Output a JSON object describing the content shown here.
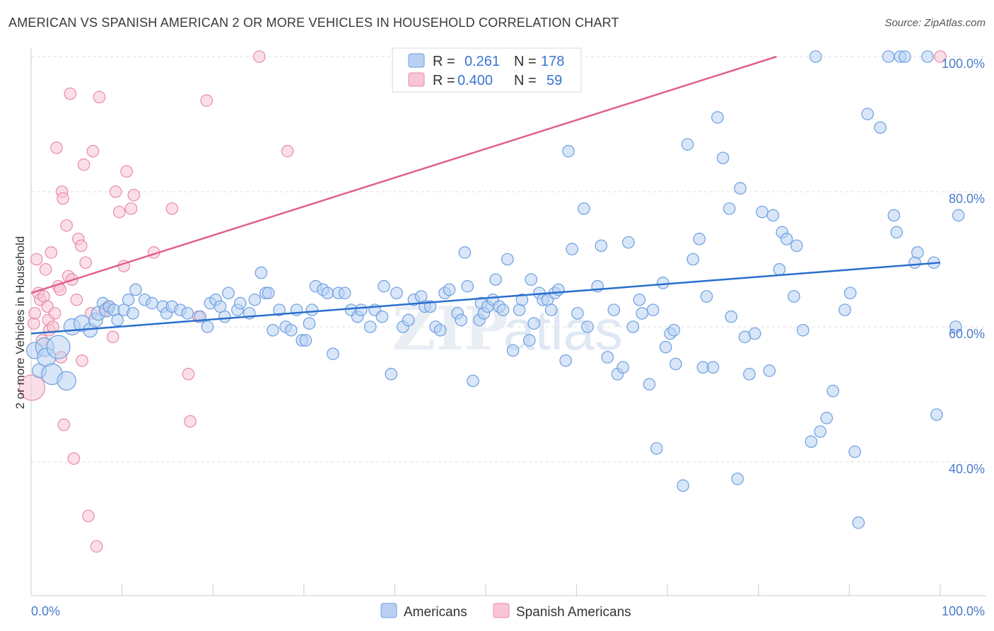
{
  "title": "AMERICAN VS SPANISH AMERICAN 2 OR MORE VEHICLES IN HOUSEHOLD CORRELATION CHART",
  "source": "Source: ZipAtlas.com",
  "watermark": {
    "left": "ZIP",
    "right": "atlas"
  },
  "colors": {
    "blue_fill": "#b8d1f3",
    "blue_stroke": "#6c9ee0",
    "blue_line": "#2a6fcc",
    "pink_fill": "#f8c5d4",
    "pink_stroke": "#e88aa8",
    "pink_line": "#e06090",
    "tick": "#4a7cc9",
    "grid": "#dddddd"
  },
  "legend": {
    "rows": [
      {
        "r_label": "R =",
        "r_value": "0.261",
        "n_label": "N =",
        "n_value": "178"
      },
      {
        "r_label": "R =",
        "r_value": "0.400",
        "n_label": "N =",
        "n_value": "59"
      }
    ]
  },
  "bottom_legend": [
    "Americans",
    "Spanish Americans"
  ],
  "chart_data": {
    "type": "scatter",
    "title": "AMERICAN VS SPANISH AMERICAN 2 OR MORE VEHICLES IN HOUSEHOLD CORRELATION CHART",
    "xlabel": "",
    "ylabel": "2 or more Vehicles in Household",
    "xlim": [
      0,
      100
    ],
    "ylim": [
      21,
      102
    ],
    "x_ticks": [
      "0.0%",
      "100.0%"
    ],
    "y_ticks": [
      {
        "value": 40,
        "label": "40.0%"
      },
      {
        "value": 60,
        "label": "60.0%"
      },
      {
        "value": 80,
        "label": "80.0%"
      },
      {
        "value": 100,
        "label": "100.0%"
      }
    ],
    "grid": true,
    "legend_position": "top-center",
    "series": [
      {
        "name": "Americans",
        "trend": {
          "x0": 0,
          "y0": 59.0,
          "x1": 100,
          "y1": 69.5
        },
        "points": [
          [
            0.4,
            56.5,
            14
          ],
          [
            0.9,
            53.5,
            12
          ],
          [
            1.5,
            57,
            16
          ],
          [
            1.7,
            55.5,
            16
          ],
          [
            2.3,
            53,
            18
          ],
          [
            3,
            57,
            20
          ],
          [
            3.9,
            52,
            16
          ],
          [
            4.5,
            60,
            14
          ],
          [
            5.6,
            60.5,
            14
          ],
          [
            6.5,
            59.5,
            12
          ],
          [
            7.1,
            61,
            12
          ],
          [
            7.4,
            62,
            12
          ],
          [
            7.9,
            63.5,
            10
          ],
          [
            8.3,
            62.5,
            12
          ],
          [
            8.6,
            63,
            10
          ],
          [
            9.1,
            62.5,
            10
          ],
          [
            9.5,
            61,
            10
          ],
          [
            10.2,
            62.5,
            10
          ],
          [
            10.7,
            64,
            10
          ],
          [
            11.2,
            62,
            10
          ],
          [
            11.5,
            65.5,
            10
          ],
          [
            12.5,
            64,
            10
          ],
          [
            13.3,
            63.5,
            10
          ],
          [
            14.5,
            63,
            10
          ],
          [
            14.9,
            62,
            10
          ],
          [
            15.5,
            63,
            10
          ],
          [
            16.4,
            62.5,
            10
          ],
          [
            17.2,
            62,
            10
          ],
          [
            18.6,
            61.5,
            10
          ],
          [
            19.4,
            60,
            10
          ],
          [
            19.7,
            63.5,
            10
          ],
          [
            20.3,
            64,
            10
          ],
          [
            20.8,
            63,
            10
          ],
          [
            21.3,
            61.5,
            10
          ],
          [
            21.7,
            65,
            10
          ],
          [
            22.7,
            62.5,
            10
          ],
          [
            23,
            63.5,
            10
          ],
          [
            24,
            62,
            10
          ],
          [
            24.6,
            64,
            10
          ],
          [
            25.3,
            68,
            10
          ],
          [
            25.8,
            65,
            10
          ],
          [
            26.1,
            65,
            10
          ],
          [
            26.6,
            59.5,
            10
          ],
          [
            27.3,
            62.5,
            10
          ],
          [
            28,
            60,
            10
          ],
          [
            28.6,
            59.5,
            10
          ],
          [
            29.2,
            62.5,
            10
          ],
          [
            29.8,
            58,
            10
          ],
          [
            30.2,
            58,
            10
          ],
          [
            30.6,
            60.5,
            10
          ],
          [
            30.9,
            62.5,
            10
          ],
          [
            31.3,
            66,
            10
          ],
          [
            32.1,
            65.5,
            10
          ],
          [
            32.6,
            65,
            10
          ],
          [
            33.2,
            56,
            10
          ],
          [
            33.8,
            65,
            10
          ],
          [
            34.5,
            65,
            10
          ],
          [
            35.2,
            62.5,
            10
          ],
          [
            35.9,
            61.5,
            10
          ],
          [
            36.3,
            62.5,
            10
          ],
          [
            37.3,
            60,
            10
          ],
          [
            37.8,
            62.5,
            10
          ],
          [
            38.6,
            61.5,
            10
          ],
          [
            38.8,
            66,
            10
          ],
          [
            39.6,
            53,
            10
          ],
          [
            40.2,
            65,
            10
          ],
          [
            40.9,
            60,
            10
          ],
          [
            41.5,
            61,
            10
          ],
          [
            42.1,
            64,
            10
          ],
          [
            42.9,
            64.5,
            10
          ],
          [
            43.3,
            63,
            10
          ],
          [
            43.9,
            63,
            10
          ],
          [
            44.5,
            60,
            10
          ],
          [
            45,
            59.5,
            10
          ],
          [
            45.5,
            65,
            10
          ],
          [
            46,
            65.5,
            10
          ],
          [
            46.9,
            62,
            10
          ],
          [
            47.3,
            61,
            10
          ],
          [
            47.7,
            71,
            10
          ],
          [
            48,
            66,
            10
          ],
          [
            48.6,
            52,
            10
          ],
          [
            49.3,
            61,
            10
          ],
          [
            49.5,
            63.5,
            10
          ],
          [
            49.8,
            62,
            10
          ],
          [
            50.2,
            63,
            10
          ],
          [
            50.8,
            64,
            10
          ],
          [
            51.1,
            67,
            10
          ],
          [
            51.5,
            63,
            10
          ],
          [
            51.9,
            62.5,
            10
          ],
          [
            52.4,
            70,
            10
          ],
          [
            53.0,
            56.5,
            10
          ],
          [
            53.7,
            62.5,
            10
          ],
          [
            54,
            64,
            10
          ],
          [
            54.8,
            58,
            10
          ],
          [
            55.0,
            67,
            10
          ],
          [
            55.3,
            60.5,
            10
          ],
          [
            55.9,
            65,
            10
          ],
          [
            56.3,
            64,
            10
          ],
          [
            56.8,
            64,
            10
          ],
          [
            57.2,
            62.5,
            10
          ],
          [
            57.6,
            65,
            10
          ],
          [
            58.0,
            65.5,
            10
          ],
          [
            58.8,
            55,
            10
          ],
          [
            59.1,
            86,
            10
          ],
          [
            59.5,
            71.5,
            10
          ],
          [
            60.1,
            62,
            10
          ],
          [
            60.8,
            77.5,
            10
          ],
          [
            61.2,
            60,
            10
          ],
          [
            62.3,
            66,
            10
          ],
          [
            62.7,
            72,
            10
          ],
          [
            63.4,
            55.5,
            10
          ],
          [
            64.1,
            62.5,
            10
          ],
          [
            64.5,
            53,
            10
          ],
          [
            65.1,
            54,
            10
          ],
          [
            65.7,
            72.5,
            10
          ],
          [
            66.2,
            60,
            10
          ],
          [
            66.9,
            64,
            10
          ],
          [
            67.2,
            62,
            10
          ],
          [
            68.0,
            51.5,
            10
          ],
          [
            68.4,
            62.5,
            10
          ],
          [
            68.8,
            42,
            10
          ],
          [
            69.5,
            66.5,
            10
          ],
          [
            69.8,
            57,
            10
          ],
          [
            70.3,
            59,
            10
          ],
          [
            70.7,
            59.5,
            10
          ],
          [
            70.9,
            54.5,
            10
          ],
          [
            71.7,
            36.5,
            10
          ],
          [
            72.2,
            87,
            10
          ],
          [
            72.8,
            70,
            10
          ],
          [
            73.5,
            73,
            10
          ],
          [
            73.9,
            54,
            10
          ],
          [
            74.3,
            64.5,
            10
          ],
          [
            75.0,
            54,
            10
          ],
          [
            75.5,
            91,
            10
          ],
          [
            76.1,
            85,
            10
          ],
          [
            76.8,
            77.5,
            10
          ],
          [
            77.0,
            61.5,
            10
          ],
          [
            77.7,
            37.5,
            10
          ],
          [
            78.0,
            80.5,
            10
          ],
          [
            78.5,
            58.5,
            10
          ],
          [
            79.0,
            53,
            10
          ],
          [
            79.6,
            59,
            10
          ],
          [
            80.4,
            77,
            10
          ],
          [
            81.2,
            53.5,
            10
          ],
          [
            81.6,
            76.5,
            10
          ],
          [
            82.3,
            68.5,
            10
          ],
          [
            82.6,
            74,
            10
          ],
          [
            83.1,
            73,
            10
          ],
          [
            83.9,
            64.5,
            10
          ],
          [
            84.2,
            72,
            10
          ],
          [
            84.9,
            59.5,
            10
          ],
          [
            85.8,
            43,
            10
          ],
          [
            86.3,
            100,
            10
          ],
          [
            86.8,
            44.5,
            10
          ],
          [
            87.5,
            46.5,
            10
          ],
          [
            88.2,
            50.5,
            10
          ],
          [
            89.5,
            62.5,
            10
          ],
          [
            90.1,
            65,
            10
          ],
          [
            90.6,
            41.5,
            10
          ],
          [
            91.0,
            31,
            10
          ],
          [
            92.0,
            91.5,
            10
          ],
          [
            93.4,
            89.5,
            10
          ],
          [
            94.3,
            100,
            10
          ],
          [
            94.9,
            76.5,
            10
          ],
          [
            95.2,
            74,
            10
          ],
          [
            95.6,
            100,
            10
          ],
          [
            96.1,
            100,
            10
          ],
          [
            97.2,
            69.5,
            10
          ],
          [
            97.5,
            71,
            10
          ],
          [
            98.6,
            100,
            10
          ],
          [
            99.3,
            69.5,
            10
          ],
          [
            99.6,
            47,
            10
          ],
          [
            101.7,
            60,
            10
          ],
          [
            102.0,
            76.5,
            10
          ]
        ]
      },
      {
        "name": "Spanish Americans",
        "trend": {
          "x0": 0,
          "y0": 65.0,
          "x1": 82,
          "y1": 100
        },
        "points": [
          [
            0.1,
            51,
            22
          ],
          [
            0.3,
            60.5,
            10
          ],
          [
            0.4,
            62,
            10
          ],
          [
            0.6,
            70,
            10
          ],
          [
            0.8,
            65,
            10
          ],
          [
            1.0,
            64,
            10
          ],
          [
            1.2,
            58,
            10
          ],
          [
            1.4,
            64.5,
            10
          ],
          [
            1.6,
            68.5,
            10
          ],
          [
            1.8,
            63,
            10
          ],
          [
            1.9,
            61,
            10
          ],
          [
            2.0,
            59.5,
            10
          ],
          [
            2.2,
            71,
            10
          ],
          [
            2.4,
            60,
            10
          ],
          [
            2.6,
            62,
            10
          ],
          [
            2.8,
            86.5,
            10
          ],
          [
            3.0,
            66,
            10
          ],
          [
            3.2,
            65.5,
            10
          ],
          [
            3.3,
            55.5,
            10
          ],
          [
            3.4,
            80,
            10
          ],
          [
            3.5,
            79,
            10
          ],
          [
            3.6,
            45.5,
            10
          ],
          [
            3.9,
            75,
            10
          ],
          [
            4.1,
            67.5,
            10
          ],
          [
            4.3,
            94.5,
            10
          ],
          [
            4.5,
            67,
            10
          ],
          [
            4.7,
            40.5,
            10
          ],
          [
            5.0,
            64,
            10
          ],
          [
            5.2,
            73,
            10
          ],
          [
            5.5,
            72,
            10
          ],
          [
            5.6,
            55,
            10
          ],
          [
            5.8,
            84,
            10
          ],
          [
            6.0,
            69.5,
            10
          ],
          [
            6.3,
            32,
            10
          ],
          [
            6.6,
            62,
            10
          ],
          [
            6.8,
            86,
            10
          ],
          [
            7.2,
            27.5,
            10
          ],
          [
            7.5,
            94,
            10
          ],
          [
            8.1,
            62.5,
            10
          ],
          [
            8.5,
            63,
            10
          ],
          [
            9.0,
            58.5,
            10
          ],
          [
            9.3,
            80,
            10
          ],
          [
            9.7,
            77,
            10
          ],
          [
            10.2,
            69,
            10
          ],
          [
            10.5,
            83,
            10
          ],
          [
            11.0,
            77.5,
            10
          ],
          [
            11.3,
            79.5,
            10
          ],
          [
            13.5,
            71,
            10
          ],
          [
            15.5,
            77.5,
            10
          ],
          [
            17.3,
            53,
            10
          ],
          [
            17.5,
            46,
            10
          ],
          [
            18.4,
            61.5,
            10
          ],
          [
            19.3,
            93.5,
            10
          ],
          [
            25.1,
            100,
            10
          ],
          [
            28.2,
            86,
            10
          ],
          [
            100.0,
            100,
            10
          ]
        ]
      }
    ]
  }
}
